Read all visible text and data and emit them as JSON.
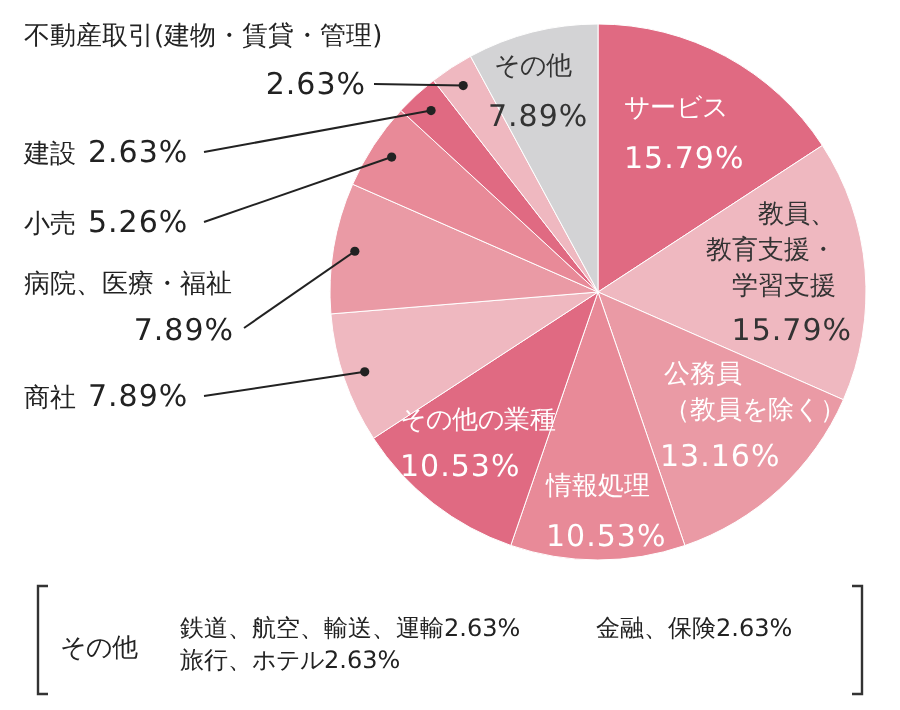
{
  "chart_data": {
    "type": "pie",
    "categories": [
      "サービス",
      "教員、教育支援・学習支援",
      "公務員（教員を除く）",
      "情報処理",
      "その他の業種",
      "商社",
      "病院、医療・福祉",
      "小売",
      "建設",
      "不動産取引(建物・賃貸・管理)",
      "その他"
    ],
    "values": [
      15.79,
      15.79,
      13.16,
      10.53,
      10.53,
      7.89,
      7.89,
      5.26,
      2.63,
      2.63,
      7.89
    ],
    "value_labels": [
      "15.79%",
      "15.79%",
      "13.16%",
      "10.53%",
      "10.53%",
      "7.89%",
      "7.89%",
      "5.26%",
      "2.63%",
      "2.63%",
      "7.89%"
    ],
    "colors": [
      "#e06a82",
      "#efb8c0",
      "#ea9aa5",
      "#e88a98",
      "#e06a82",
      "#efb8c0",
      "#ea9aa5",
      "#e88a98",
      "#e06a82",
      "#efb8c0",
      "#d3d3d5"
    ],
    "annotations": [
      "その他",
      "鉄道、航空、輸送、運輸2.63%",
      "金融、保険2.63%",
      "旅行、ホテル2.63%"
    ]
  }
}
